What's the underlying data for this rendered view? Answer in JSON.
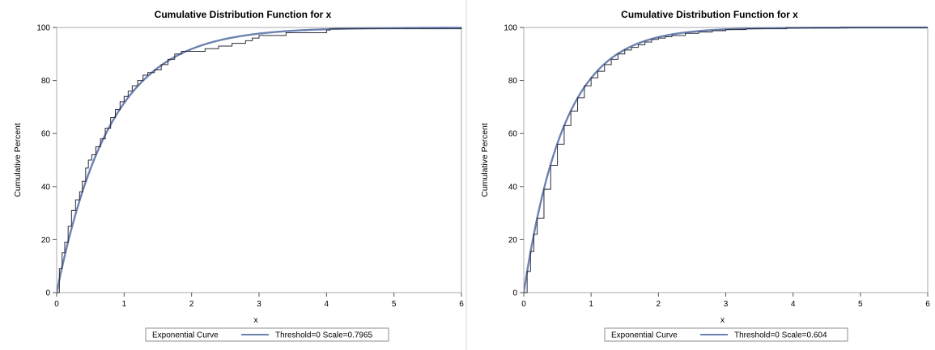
{
  "colors": {
    "empirical": "#2b2b3b",
    "curve": "#6b82b0",
    "frame": "#a9a9a9",
    "legend_border": "#8c8c8c",
    "background": "#ffffff"
  },
  "chart_data": [
    {
      "type": "line",
      "title": "Cumulative Distribution Function for x",
      "xlabel": "x",
      "ylabel": "Cumulative Percent",
      "xlim": [
        0,
        6
      ],
      "ylim": [
        0,
        100
      ],
      "xticks": [
        "0",
        "1",
        "2",
        "3",
        "4",
        "5",
        "6"
      ],
      "yticks": [
        "0",
        "20",
        "40",
        "60",
        "80",
        "100"
      ],
      "grid": false,
      "legend": {
        "position": "bottom",
        "title": "Exponential Curve",
        "entries": [
          "Threshold=0 Scale=0.7965"
        ]
      },
      "series": [
        {
          "kind": "step",
          "x": [
            0,
            0.04,
            0.08,
            0.12,
            0.17,
            0.22,
            0.28,
            0.34,
            0.38,
            0.43,
            0.47,
            0.52,
            0.58,
            0.65,
            0.72,
            0.8,
            0.87,
            0.94,
            1.0,
            1.06,
            1.12,
            1.2,
            1.28,
            1.35,
            1.45,
            1.55,
            1.65,
            1.75,
            1.85,
            2.0,
            2.2,
            2.4,
            2.6,
            2.8,
            2.9,
            3.0,
            3.4,
            4.0,
            4.05,
            5.0,
            6.0
          ],
          "y": [
            0,
            9,
            15,
            19,
            25,
            31,
            35,
            38,
            42,
            47,
            50,
            52,
            55,
            58,
            62,
            66,
            69,
            72,
            74,
            76,
            78,
            80,
            82,
            83,
            84,
            86,
            88,
            90,
            91,
            91,
            92,
            93,
            94,
            95,
            96,
            97,
            98,
            99,
            99.5,
            99.5,
            100
          ]
        },
        {
          "name": "Threshold=0 Scale=0.7965",
          "kind": "exponential",
          "threshold": 0,
          "scale": 0.7965
        }
      ]
    },
    {
      "type": "line",
      "title": "Cumulative Distribution Function for x",
      "xlabel": "x",
      "ylabel": "Cumulative Percent",
      "xlim": [
        0,
        6
      ],
      "ylim": [
        0,
        100
      ],
      "xticks": [
        "0",
        "1",
        "2",
        "3",
        "4",
        "5",
        "6"
      ],
      "yticks": [
        "0",
        "20",
        "40",
        "60",
        "80",
        "100"
      ],
      "grid": false,
      "legend": {
        "position": "bottom",
        "title": "Exponential Curve",
        "entries": [
          "Threshold=0 Scale=0.604"
        ]
      },
      "series": [
        {
          "kind": "step",
          "x": [
            0,
            0.05,
            0.1,
            0.15,
            0.2,
            0.3,
            0.4,
            0.5,
            0.6,
            0.7,
            0.8,
            0.9,
            1.0,
            1.1,
            1.2,
            1.3,
            1.4,
            1.5,
            1.6,
            1.7,
            1.8,
            1.9,
            2.0,
            2.1,
            2.2,
            2.4,
            2.6,
            2.8,
            3.0,
            3.3,
            3.9,
            4.7,
            6.0
          ],
          "y": [
            0,
            8,
            15.5,
            22,
            28,
            39,
            48,
            56,
            63,
            68.5,
            73.5,
            78,
            81,
            83.5,
            86,
            88,
            90,
            91.5,
            92.5,
            93.5,
            94.5,
            95.5,
            96,
            96.5,
            97,
            97.8,
            98.3,
            98.8,
            99.2,
            99.5,
            99.8,
            100,
            100
          ]
        },
        {
          "name": "Threshold=0 Scale=0.604",
          "kind": "exponential",
          "threshold": 0,
          "scale": 0.604
        }
      ]
    }
  ]
}
